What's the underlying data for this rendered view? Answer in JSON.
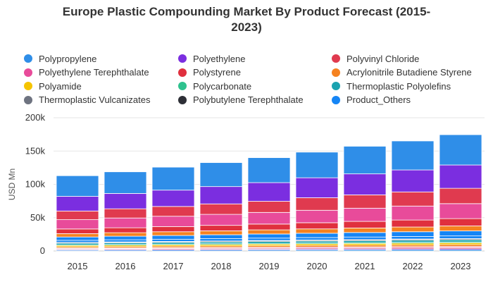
{
  "chart_data": {
    "type": "bar",
    "stacked": true,
    "title": "Europe Plastic Compounding Market By Product Forecast (2015-2023)",
    "title_lines": [
      "Europe Plastic Compounding Market By Product Forecast (2015-",
      "2023)"
    ],
    "xlabel": "",
    "ylabel": "USD Mn",
    "ylim": [
      0,
      200000
    ],
    "yticks": [
      0,
      50000,
      100000,
      150000,
      200000
    ],
    "ytick_labels": [
      "0",
      "50k",
      "100k",
      "150k",
      "200k"
    ],
    "grid": true,
    "legend_position": "top",
    "categories": [
      "2015",
      "2016",
      "2017",
      "2018",
      "2019",
      "2020",
      "2021",
      "2022",
      "2023"
    ],
    "series": [
      {
        "name": "Polypropylene",
        "color": "#2f8ee8",
        "values": [
          1200,
          1300,
          1400,
          1500,
          1600,
          1700,
          1800,
          1900,
          2000
        ]
      },
      {
        "name": "Polyethylene",
        "color": "#7b2ee0",
        "values": [
          1000,
          1050,
          1100,
          1150,
          1200,
          1250,
          1300,
          1350,
          1400
        ]
      },
      {
        "name": "Polyvinyl Chloride",
        "color": "#e03a4f",
        "values": [
          900,
          950,
          1000,
          1050,
          1100,
          1150,
          1200,
          1250,
          1300
        ]
      },
      {
        "name": "Polyethylene Terephthalate",
        "color": "#e84b9a",
        "values": [
          800,
          850,
          900,
          950,
          1000,
          1050,
          1100,
          1150,
          1200
        ]
      },
      {
        "name": "Polystyrene",
        "color": "#e0303e",
        "values": [
          700,
          750,
          800,
          850,
          900,
          950,
          1000,
          1050,
          1100
        ]
      },
      {
        "name": "Acrylonitrile Butadiene Styrene",
        "color": "#f58220",
        "values": [
          1800,
          1900,
          2000,
          2100,
          2200,
          2300,
          2400,
          2500,
          2600
        ]
      },
      {
        "name": "Polyamide",
        "color": "#f5c400",
        "values": [
          1800,
          1900,
          2000,
          2100,
          2200,
          2300,
          2400,
          2500,
          2600
        ]
      },
      {
        "name": "Polycarbonate",
        "color": "#2ec28e",
        "values": [
          1100,
          1150,
          1200,
          1250,
          1300,
          1350,
          1400,
          1450,
          1500
        ]
      },
      {
        "name": "Thermoplastic Polyolefins",
        "color": "#1ba3b0",
        "values": [
          2200,
          2300,
          2400,
          2500,
          2600,
          2700,
          2800,
          2900,
          3000
        ]
      },
      {
        "name": "Thermoplastic Vulcanizates",
        "color": "#6e7380",
        "values": [
          1000,
          1050,
          1100,
          1150,
          1200,
          1250,
          1300,
          1350,
          1400
        ]
      },
      {
        "name": "Polybutylene Terephthalate",
        "color": "#2d2f36",
        "values": [
          500,
          520,
          540,
          560,
          580,
          600,
          620,
          640,
          660
        ]
      },
      {
        "name": "Product_Others",
        "color": "#1585f5",
        "values": [
          3000,
          3100,
          3200,
          3300,
          3400,
          3500,
          3600,
          3700,
          3800
        ]
      }
    ],
    "segments": [
      {
        "color": "#1585f5",
        "values": [
          5000,
          5300,
          5600,
          5900,
          6200,
          6500,
          6800,
          7100,
          7500
        ]
      },
      {
        "color": "#f58220",
        "values": [
          5000,
          5300,
          5600,
          5900,
          6200,
          6500,
          6800,
          7100,
          7500
        ]
      },
      {
        "color": "#e0303e",
        "values": [
          7000,
          7400,
          7800,
          8200,
          8700,
          9300,
          9900,
          10500,
          11000
        ]
      },
      {
        "color": "#e84b9a",
        "values": [
          14000,
          14700,
          15500,
          16500,
          17500,
          18700,
          19800,
          21000,
          22500
        ]
      },
      {
        "color": "#e03a4f",
        "values": [
          13000,
          13800,
          14700,
          15700,
          16700,
          18800,
          20000,
          21200,
          23000
        ]
      },
      {
        "color": "#7b2ee0",
        "values": [
          22000,
          23000,
          24500,
          26000,
          28000,
          30000,
          31500,
          33000,
          35000
        ]
      },
      {
        "color": "#2f8ee8",
        "values": [
          31000,
          32500,
          34500,
          36000,
          37500,
          38500,
          41500,
          43500,
          45500
        ]
      }
    ]
  }
}
